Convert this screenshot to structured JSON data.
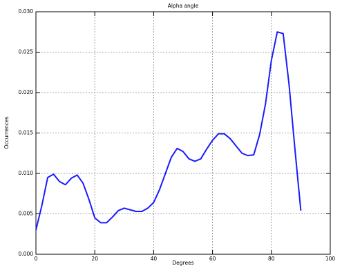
{
  "chart_data": {
    "type": "line",
    "title": "Alpha angle",
    "xlabel": "Degrees",
    "ylabel": "Occurrences",
    "x": [
      0,
      2,
      4,
      6,
      8,
      10,
      12,
      14,
      16,
      18,
      20,
      22,
      24,
      26,
      28,
      30,
      32,
      34,
      36,
      38,
      40,
      42,
      44,
      46,
      48,
      50,
      52,
      54,
      56,
      58,
      60,
      62,
      64,
      66,
      68,
      70,
      72,
      74,
      76,
      78,
      80,
      82,
      84,
      86,
      88,
      90
    ],
    "series": [
      {
        "name": "Alpha angle",
        "color": "#1a1aff",
        "values": [
          0.003,
          0.006,
          0.0095,
          0.0099,
          0.009,
          0.0086,
          0.0094,
          0.0098,
          0.0088,
          0.0068,
          0.0045,
          0.0039,
          0.0039,
          0.0046,
          0.0054,
          0.0057,
          0.0055,
          0.0053,
          0.0053,
          0.0057,
          0.0064,
          0.008,
          0.01,
          0.012,
          0.0131,
          0.0127,
          0.0118,
          0.0115,
          0.0118,
          0.013,
          0.0141,
          0.0149,
          0.0149,
          0.0143,
          0.0134,
          0.0125,
          0.0122,
          0.0123,
          0.0148,
          0.0186,
          0.024,
          0.0275,
          0.0273,
          0.021,
          0.013,
          0.0054
        ]
      }
    ],
    "xlim": [
      0,
      100
    ],
    "xticks": [
      0,
      20,
      40,
      60,
      80,
      100
    ],
    "ylim": [
      0,
      0.03
    ],
    "yticks": [
      {
        "value": 0,
        "label": "0.000"
      },
      {
        "value": 0.005,
        "label": "0.005"
      },
      {
        "value": 0.01,
        "label": "0.010"
      },
      {
        "value": 0.015,
        "label": "0.015"
      },
      {
        "value": 0.02,
        "label": "0.020"
      },
      {
        "value": 0.025,
        "label": "0.025"
      },
      {
        "value": 0.03,
        "label": "0.030"
      }
    ],
    "grid": true
  }
}
